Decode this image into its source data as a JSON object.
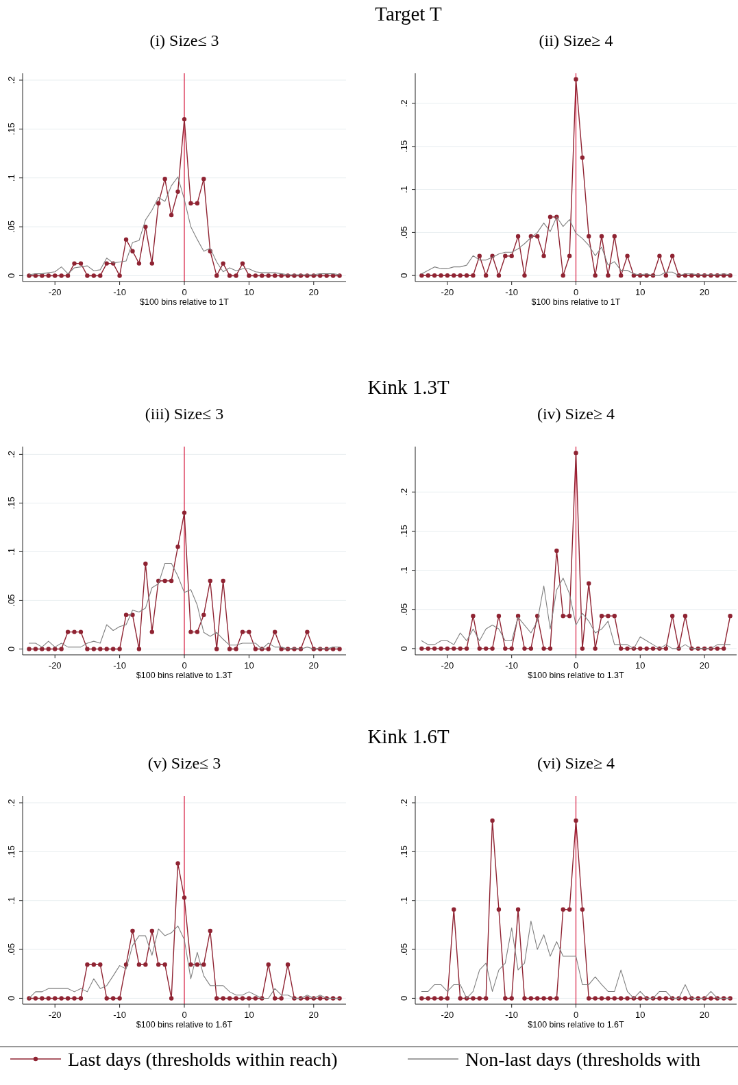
{
  "chart_data": [
    {
      "type": "line",
      "subtitle": "(i) Size≤ 3",
      "xlabel": "$100 bins relative to 1T",
      "grid": "y",
      "xlim": [
        -25,
        25
      ],
      "xticks": [
        -20,
        -10,
        0,
        10,
        20
      ],
      "ylim": [
        -0.006,
        0.207
      ],
      "yticks": [
        {
          "value": 0,
          "label": "0"
        },
        {
          "value": 0.05,
          "label": ".05"
        },
        {
          "value": 0.1,
          "label": ".1"
        },
        {
          "value": 0.15,
          "label": ".15"
        },
        {
          "value": 0.2,
          "label": ".2"
        }
      ],
      "ref_lines": [
        {
          "axis": "x",
          "value": 0,
          "color": "#d6163c"
        }
      ],
      "x": [
        -24,
        -23,
        -22,
        -21,
        -20,
        -19,
        -18,
        -17,
        -16,
        -15,
        -14,
        -13,
        -12,
        -11,
        -10,
        -9,
        -8,
        -7,
        -6,
        -5,
        -4,
        -3,
        -2,
        -1,
        0,
        1,
        2,
        3,
        4,
        5,
        6,
        7,
        8,
        9,
        10,
        11,
        12,
        13,
        14,
        15,
        16,
        17,
        18,
        19,
        20,
        21,
        22,
        23,
        24
      ],
      "series": [
        {
          "color": "#8f2332",
          "marker": "circle",
          "values": [
            0,
            0,
            0,
            0,
            0,
            0,
            0,
            0.0125,
            0.0125,
            0,
            0,
            0,
            0.0125,
            0.0125,
            0,
            0.037,
            0.025,
            0.0125,
            0.05,
            0.0125,
            0.074,
            0.099,
            0.062,
            0.086,
            0.16,
            0.074,
            0.074,
            0.099,
            0.025,
            0,
            0.0125,
            0,
            0,
            0.0125,
            0,
            0,
            0,
            0,
            0,
            0,
            0,
            0,
            0,
            0,
            0,
            0,
            0,
            0,
            0
          ]
        },
        {
          "color": "#808080",
          "marker": "none",
          "values": [
            0.001,
            0.002,
            0.002,
            0.003,
            0.004,
            0.009,
            0.002,
            0.008,
            0.009,
            0.01,
            0.005,
            0.006,
            0.018,
            0.013,
            0.014,
            0.015,
            0.034,
            0.036,
            0.057,
            0.067,
            0.08,
            0.076,
            0.092,
            0.101,
            0.078,
            0.05,
            0.037,
            0.025,
            0.028,
            0.014,
            0.004,
            0.008,
            0.005,
            0.007,
            0.007,
            0.004,
            0.003,
            0.003,
            0.003,
            0.002,
            0.001,
            0.001,
            0.001,
            0.001,
            0.001,
            0.002,
            0.002,
            0.002,
            0.001
          ]
        }
      ]
    },
    {
      "type": "line",
      "title": "Target T",
      "subtitle": "(ii) Size≥ 4",
      "xlabel": "$100 bins relative to 1T",
      "grid": "y",
      "xlim": [
        -25,
        25
      ],
      "xticks": [
        -20,
        -10,
        0,
        10,
        20
      ],
      "ylim": [
        -0.007,
        0.235
      ],
      "yticks": [
        {
          "value": 0,
          "label": "0"
        },
        {
          "value": 0.05,
          "label": ".05"
        },
        {
          "value": 0.1,
          "label": ".1"
        },
        {
          "value": 0.15,
          "label": ".15"
        },
        {
          "value": 0.2,
          "label": ".2"
        }
      ],
      "ref_lines": [
        {
          "axis": "x",
          "value": 0,
          "color": "#d6163c"
        }
      ],
      "x": [
        -24,
        -23,
        -22,
        -21,
        -20,
        -19,
        -18,
        -17,
        -16,
        -15,
        -14,
        -13,
        -12,
        -11,
        -10,
        -9,
        -8,
        -7,
        -6,
        -5,
        -4,
        -3,
        -2,
        -1,
        0,
        1,
        2,
        3,
        4,
        5,
        6,
        7,
        8,
        9,
        10,
        11,
        12,
        13,
        14,
        15,
        16,
        17,
        18,
        19,
        20,
        21,
        22,
        23,
        24
      ],
      "series": [
        {
          "color": "#8f2332",
          "marker": "circle",
          "values": [
            0,
            0,
            0,
            0,
            0,
            0,
            0,
            0,
            0,
            0.0227,
            0,
            0.0227,
            0,
            0.0227,
            0.0227,
            0.0455,
            0,
            0.0455,
            0.0455,
            0.0227,
            0.068,
            0.068,
            0,
            0.0227,
            0.228,
            0.137,
            0.0455,
            0,
            0.0455,
            0,
            0.0455,
            0,
            0.0227,
            0,
            0,
            0,
            0,
            0.0227,
            0,
            0.0227,
            0,
            0,
            0,
            0,
            0,
            0,
            0,
            0,
            0
          ]
        },
        {
          "color": "#808080",
          "marker": "none",
          "values": [
            0.002,
            0.006,
            0.01,
            0.008,
            0.008,
            0.01,
            0.01,
            0.012,
            0.023,
            0.018,
            0.018,
            0.021,
            0.025,
            0.027,
            0.027,
            0.031,
            0.037,
            0.044,
            0.05,
            0.061,
            0.051,
            0.068,
            0.057,
            0.065,
            0.049,
            0.043,
            0.035,
            0.023,
            0.033,
            0.012,
            0.016,
            0.006,
            0.006,
            0.002,
            0.001,
            0.002,
            0,
            0,
            0.004,
            0.004,
            0,
            0.002,
            0.002,
            0.001,
            0.001,
            0.001,
            0.001,
            0.002,
            0.001
          ]
        }
      ]
    },
    {
      "type": "line",
      "subtitle": "(iii) Size≤ 3",
      "xlabel": "$100 bins relative to 1.3T",
      "grid": "y",
      "xlim": [
        -25,
        25
      ],
      "xticks": [
        -20,
        -10,
        0,
        10,
        20
      ],
      "ylim": [
        -0.006,
        0.208
      ],
      "yticks": [
        {
          "value": 0,
          "label": "0"
        },
        {
          "value": 0.05,
          "label": ".05"
        },
        {
          "value": 0.1,
          "label": ".1"
        },
        {
          "value": 0.15,
          "label": ".15"
        },
        {
          "value": 0.2,
          "label": ".2"
        }
      ],
      "ref_lines": [
        {
          "axis": "x",
          "value": 0,
          "color": "#d6163c"
        }
      ],
      "x": [
        -24,
        -23,
        -22,
        -21,
        -20,
        -19,
        -18,
        -17,
        -16,
        -15,
        -14,
        -13,
        -12,
        -11,
        -10,
        -9,
        -8,
        -7,
        -6,
        -5,
        -4,
        -3,
        -2,
        -1,
        0,
        1,
        2,
        3,
        4,
        5,
        6,
        7,
        8,
        9,
        10,
        11,
        12,
        13,
        14,
        15,
        16,
        17,
        18,
        19,
        20,
        21,
        22,
        23,
        24
      ],
      "series": [
        {
          "color": "#8f2332",
          "marker": "circle",
          "values": [
            0,
            0,
            0,
            0,
            0,
            0,
            0.0175,
            0.0175,
            0.0175,
            0,
            0,
            0,
            0,
            0,
            0,
            0.035,
            0.035,
            0,
            0.0876,
            0.0175,
            0.07,
            0.07,
            0.07,
            0.105,
            0.14,
            0.0175,
            0.0175,
            0.035,
            0.07,
            0,
            0.07,
            0,
            0,
            0.0175,
            0.0175,
            0,
            0,
            0,
            0.0175,
            0,
            0,
            0,
            0,
            0.0175,
            0,
            0,
            0,
            0,
            0
          ]
        },
        {
          "color": "#808080",
          "marker": "none",
          "values": [
            0.006,
            0.006,
            0.002,
            0.008,
            0.002,
            0.006,
            0.002,
            0.002,
            0.002,
            0.006,
            0.008,
            0.006,
            0.025,
            0.019,
            0.023,
            0.025,
            0.04,
            0.038,
            0.042,
            0.063,
            0.067,
            0.088,
            0.088,
            0.075,
            0.058,
            0.061,
            0.045,
            0.017,
            0.013,
            0.017,
            0.01,
            0.004,
            0.004,
            0.006,
            0.006,
            0.006,
            0,
            0.006,
            0.002,
            0.002,
            0,
            0.001,
            0,
            0.002,
            0,
            0.001,
            0,
            0.002,
            0.002
          ]
        }
      ]
    },
    {
      "type": "line",
      "title": "Kink 1.3T",
      "subtitle": "(iv) Size≥ 4",
      "xlabel": "$100 bins relative to 1.3T",
      "grid": "y",
      "xlim": [
        -25,
        25
      ],
      "xticks": [
        -20,
        -10,
        0,
        10,
        20
      ],
      "ylim": [
        -0.008,
        0.258
      ],
      "yticks": [
        {
          "value": 0,
          "label": "0"
        },
        {
          "value": 0.05,
          "label": ".05"
        },
        {
          "value": 0.1,
          "label": ".1"
        },
        {
          "value": 0.15,
          "label": ".15"
        },
        {
          "value": 0.2,
          "label": ".2"
        }
      ],
      "ref_lines": [
        {
          "axis": "x",
          "value": 0,
          "color": "#d6163c"
        }
      ],
      "x": [
        -24,
        -23,
        -22,
        -21,
        -20,
        -19,
        -18,
        -17,
        -16,
        -15,
        -14,
        -13,
        -12,
        -11,
        -10,
        -9,
        -8,
        -7,
        -6,
        -5,
        -4,
        -3,
        -2,
        -1,
        0,
        1,
        2,
        3,
        4,
        5,
        6,
        7,
        8,
        9,
        10,
        11,
        12,
        13,
        14,
        15,
        16,
        17,
        18,
        19,
        20,
        21,
        22,
        23,
        24
      ],
      "series": [
        {
          "color": "#8f2332",
          "marker": "circle",
          "values": [
            0,
            0,
            0,
            0,
            0,
            0,
            0,
            0,
            0.0417,
            0,
            0,
            0,
            0.0417,
            0,
            0,
            0.0417,
            0,
            0,
            0.0417,
            0,
            0,
            0.125,
            0.0417,
            0.0417,
            0.25,
            0,
            0.0833,
            0,
            0.0417,
            0.0417,
            0.0417,
            0,
            0,
            0,
            0,
            0,
            0,
            0,
            0,
            0.0417,
            0,
            0.0417,
            0,
            0,
            0,
            0,
            0,
            0,
            0.0417
          ]
        },
        {
          "color": "#808080",
          "marker": "none",
          "values": [
            0.01,
            0.005,
            0.005,
            0.01,
            0.01,
            0.005,
            0.02,
            0.01,
            0.025,
            0.01,
            0.025,
            0.03,
            0.025,
            0.01,
            0.01,
            0.04,
            0.03,
            0.02,
            0.035,
            0.08,
            0.025,
            0.075,
            0.09,
            0.07,
            0.03,
            0.045,
            0.035,
            0.02,
            0.025,
            0.035,
            0.005,
            0.005,
            0.005,
            0,
            0.015,
            0.01,
            0.005,
            0,
            0.005,
            0,
            0,
            0.005,
            0,
            0,
            0,
            0,
            0.005,
            0.005,
            0.005
          ]
        }
      ]
    },
    {
      "type": "line",
      "subtitle": "(v) Size≤ 3",
      "xlabel": "$100 bins relative to 1.6T",
      "grid": "y",
      "legend": "bottom",
      "xlim": [
        -25,
        25
      ],
      "xticks": [
        -20,
        -10,
        0,
        10,
        20
      ],
      "ylim": [
        -0.006,
        0.207
      ],
      "yticks": [
        {
          "value": 0,
          "label": "0"
        },
        {
          "value": 0.05,
          "label": ".05"
        },
        {
          "value": 0.1,
          "label": ".1"
        },
        {
          "value": 0.15,
          "label": ".15"
        },
        {
          "value": 0.2,
          "label": ".2"
        }
      ],
      "ref_lines": [
        {
          "axis": "x",
          "value": 0,
          "color": "#d6163c"
        }
      ],
      "x": [
        -24,
        -23,
        -22,
        -21,
        -20,
        -19,
        -18,
        -17,
        -16,
        -15,
        -14,
        -13,
        -12,
        -11,
        -10,
        -9,
        -8,
        -7,
        -6,
        -5,
        -4,
        -3,
        -2,
        -1,
        0,
        1,
        2,
        3,
        4,
        5,
        6,
        7,
        8,
        9,
        10,
        11,
        12,
        13,
        14,
        15,
        16,
        17,
        18,
        19,
        20,
        21,
        22,
        23,
        24
      ],
      "series": [
        {
          "name": "Last days (thresholds within reach)",
          "color": "#8f2332",
          "marker": "circle",
          "values": [
            0,
            0,
            0,
            0,
            0,
            0,
            0,
            0,
            0,
            0.0345,
            0.0345,
            0.0345,
            0,
            0,
            0,
            0.0345,
            0.069,
            0.0345,
            0.0345,
            0.069,
            0.0345,
            0.0345,
            0,
            0.138,
            0.103,
            0.0345,
            0.0345,
            0.0345,
            0.069,
            0,
            0,
            0,
            0,
            0,
            0,
            0,
            0,
            0.0345,
            0,
            0,
            0.0345,
            0,
            0,
            0,
            0,
            0,
            0,
            0,
            0
          ]
        },
        {
          "name": "Non-last days (thresholds with",
          "color": "#808080",
          "marker": "none",
          "values": [
            0,
            0.0067,
            0.0067,
            0.01,
            0.01,
            0.01,
            0.01,
            0.0067,
            0.01,
            0.0067,
            0.02,
            0.01,
            0.013,
            0.023,
            0.0335,
            0.03,
            0.054,
            0.064,
            0.064,
            0.044,
            0.071,
            0.064,
            0.067,
            0.074,
            0.06,
            0.02,
            0.047,
            0.023,
            0.013,
            0.013,
            0.013,
            0.0067,
            0.0033,
            0.0033,
            0.0067,
            0.0033,
            0,
            0,
            0.01,
            0.0033,
            0.0033,
            0,
            0,
            0.0033,
            0,
            0.0033,
            0,
            0,
            0
          ]
        }
      ]
    },
    {
      "type": "line",
      "title": "Kink 1.6T",
      "subtitle": "(vi) Size≥ 4",
      "xlabel": "$100 bins relative to 1.6T",
      "grid": "y",
      "xlim": [
        -25,
        25
      ],
      "xticks": [
        -20,
        -10,
        0,
        10,
        20
      ],
      "ylim": [
        -0.006,
        0.207
      ],
      "yticks": [
        {
          "value": 0,
          "label": "0"
        },
        {
          "value": 0.05,
          "label": ".05"
        },
        {
          "value": 0.1,
          "label": ".1"
        },
        {
          "value": 0.15,
          "label": ".15"
        },
        {
          "value": 0.2,
          "label": ".2"
        }
      ],
      "ref_lines": [
        {
          "axis": "x",
          "value": 0,
          "color": "#d6163c"
        }
      ],
      "x": [
        -24,
        -23,
        -22,
        -21,
        -20,
        -19,
        -18,
        -17,
        -16,
        -15,
        -14,
        -13,
        -12,
        -11,
        -10,
        -9,
        -8,
        -7,
        -6,
        -5,
        -4,
        -3,
        -2,
        -1,
        0,
        1,
        2,
        3,
        4,
        5,
        6,
        7,
        8,
        9,
        10,
        11,
        12,
        13,
        14,
        15,
        16,
        17,
        18,
        19,
        20,
        21,
        22,
        23,
        24
      ],
      "series": [
        {
          "color": "#8f2332",
          "marker": "circle",
          "values": [
            0,
            0,
            0,
            0,
            0,
            0.0909,
            0,
            0,
            0,
            0,
            0,
            0.1818,
            0.0909,
            0,
            0,
            0.0909,
            0,
            0,
            0,
            0,
            0,
            0,
            0.0909,
            0.0909,
            0.1818,
            0.0909,
            0,
            0,
            0,
            0,
            0,
            0,
            0,
            0,
            0,
            0,
            0,
            0,
            0,
            0,
            0,
            0,
            0,
            0,
            0,
            0,
            0,
            0,
            0
          ]
        },
        {
          "color": "#808080",
          "marker": "none",
          "values": [
            0.007,
            0.007,
            0.014,
            0.014,
            0.007,
            0.014,
            0.014,
            0,
            0.007,
            0.029,
            0.036,
            0.007,
            0.029,
            0.036,
            0.072,
            0.029,
            0.036,
            0.079,
            0.05,
            0.065,
            0.043,
            0.058,
            0.043,
            0.043,
            0.043,
            0.014,
            0.014,
            0.022,
            0.014,
            0.007,
            0.007,
            0.029,
            0.007,
            0,
            0.007,
            0,
            0,
            0.007,
            0.007,
            0,
            0,
            0.014,
            0,
            0,
            0,
            0.007,
            0,
            0,
            0
          ]
        }
      ]
    }
  ]
}
